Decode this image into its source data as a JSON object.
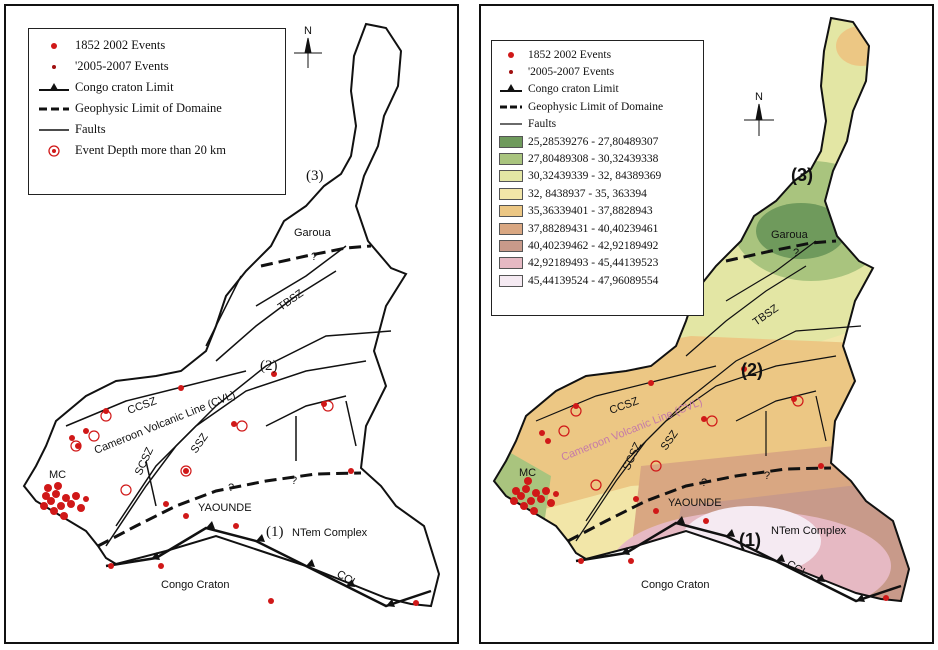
{
  "legend_left": {
    "items": [
      {
        "symbol": "big-dot",
        "label": "1852 2002 Events"
      },
      {
        "symbol": "small-dot",
        "label": "'2005-2007 Events"
      },
      {
        "symbol": "craton-line",
        "label": "Congo craton Limit"
      },
      {
        "symbol": "geophysic-line",
        "label": "Geophysic Limit of Domaine"
      },
      {
        "symbol": "fault-line",
        "label": "Faults"
      },
      {
        "symbol": "circle",
        "label": "Event Depth more than 20 km"
      }
    ]
  },
  "legend_right": {
    "items": [
      {
        "symbol": "big-dot",
        "label": "1852 2002 Events"
      },
      {
        "symbol": "small-dot",
        "label": "'2005-2007 Events"
      },
      {
        "symbol": "craton-line",
        "label": "Congo craton Limit"
      },
      {
        "symbol": "geophysic-line",
        "label": "Geophysic Limit of Domaine"
      },
      {
        "symbol": "fault-line",
        "label": "Faults"
      }
    ],
    "classes": [
      {
        "range": "25,28539276 - 27,80489307",
        "color": "#6f9a5c"
      },
      {
        "range": "27,80489308 - 30,32439338",
        "color": "#a9c47e"
      },
      {
        "range": "30,32439339 - 32, 84389369",
        "color": "#e3e6a4"
      },
      {
        "range": "32, 8438937 - 35, 363394",
        "color": "#f2e6a8"
      },
      {
        "range": "35,36339401 - 37,8828943",
        "color": "#ecc784"
      },
      {
        "range": "37,88289431 - 40,40239461",
        "color": "#d9a782"
      },
      {
        "range": "40,40239462 - 42,92189492",
        "color": "#c89a8a"
      },
      {
        "range": "42,92189493 - 45,44139523",
        "color": "#e6b9c3"
      },
      {
        "range": "45,44139524 - 47,96089554",
        "color": "#f5eaf2"
      }
    ]
  },
  "map_labels": {
    "north": "N",
    "domain1": "(1)",
    "domain2": "(2)",
    "domain3": "(3)",
    "garoua": "Garoua",
    "yaounde": "YAOUNDE",
    "ntem": "NTem Complex",
    "congo_craton": "Congo Craton",
    "ccl": "CCL",
    "tbsz": "TBSZ",
    "ccsz": "CCSZ",
    "scsz": "SCSZ",
    "ssz": "SSZ",
    "mc": "MC",
    "cvl_left": "Cameroon Volcanic Line (CVL)",
    "cvl_right": "Cameroon Volcanic Line (CVL)",
    "unknown_mark": "?"
  },
  "colors": {
    "event_big": "#d01818",
    "event_small": "#a01010",
    "line": "#111111"
  }
}
